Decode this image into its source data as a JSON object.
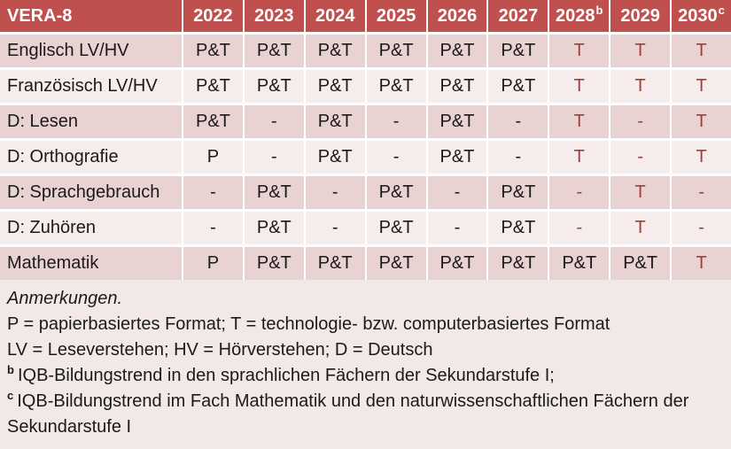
{
  "colors": {
    "header_bg": "#C0504D",
    "header_text": "#FFFFFF",
    "band_dark": "#E9D3D2",
    "band_light": "#F5ECEB",
    "notes_bg": "#F2E8E8",
    "highlight": "#9E3D3A",
    "body_text": "#1A1A1A"
  },
  "table": {
    "header": [
      {
        "label": "VERA-8",
        "sup": ""
      },
      {
        "label": "2022",
        "sup": ""
      },
      {
        "label": "2023",
        "sup": ""
      },
      {
        "label": "2024",
        "sup": ""
      },
      {
        "label": "2025",
        "sup": ""
      },
      {
        "label": "2026",
        "sup": ""
      },
      {
        "label": "2027",
        "sup": ""
      },
      {
        "label": "2028",
        "sup": "b"
      },
      {
        "label": "2029",
        "sup": ""
      },
      {
        "label": "2030",
        "sup": "c"
      }
    ],
    "rows": [
      {
        "label": "Englisch LV/HV",
        "cells": [
          {
            "v": "P&T",
            "hl": false
          },
          {
            "v": "P&T",
            "hl": false
          },
          {
            "v": "P&T",
            "hl": false
          },
          {
            "v": "P&T",
            "hl": false
          },
          {
            "v": "P&T",
            "hl": false
          },
          {
            "v": "P&T",
            "hl": false
          },
          {
            "v": "T",
            "hl": true
          },
          {
            "v": "T",
            "hl": true
          },
          {
            "v": "T",
            "hl": true
          }
        ]
      },
      {
        "label": "Französisch LV/HV",
        "cells": [
          {
            "v": "P&T",
            "hl": false
          },
          {
            "v": "P&T",
            "hl": false
          },
          {
            "v": "P&T",
            "hl": false
          },
          {
            "v": "P&T",
            "hl": false
          },
          {
            "v": "P&T",
            "hl": false
          },
          {
            "v": "P&T",
            "hl": false
          },
          {
            "v": "T",
            "hl": true
          },
          {
            "v": "T",
            "hl": true
          },
          {
            "v": "T",
            "hl": true
          }
        ]
      },
      {
        "label": "D: Lesen",
        "cells": [
          {
            "v": "P&T",
            "hl": false
          },
          {
            "v": "-",
            "hl": false
          },
          {
            "v": "P&T",
            "hl": false
          },
          {
            "v": "-",
            "hl": false
          },
          {
            "v": "P&T",
            "hl": false
          },
          {
            "v": "-",
            "hl": false
          },
          {
            "v": "T",
            "hl": true
          },
          {
            "v": "-",
            "hl": true
          },
          {
            "v": "T",
            "hl": true
          }
        ]
      },
      {
        "label": "D: Orthografie",
        "cells": [
          {
            "v": "P",
            "hl": false
          },
          {
            "v": "-",
            "hl": false
          },
          {
            "v": "P&T",
            "hl": false
          },
          {
            "v": "-",
            "hl": false
          },
          {
            "v": "P&T",
            "hl": false
          },
          {
            "v": "-",
            "hl": false
          },
          {
            "v": "T",
            "hl": true
          },
          {
            "v": "-",
            "hl": true
          },
          {
            "v": "T",
            "hl": true
          }
        ]
      },
      {
        "label": "D: Sprachgebrauch",
        "cells": [
          {
            "v": "-",
            "hl": false
          },
          {
            "v": "P&T",
            "hl": false
          },
          {
            "v": "-",
            "hl": false
          },
          {
            "v": "P&T",
            "hl": false
          },
          {
            "v": "-",
            "hl": false
          },
          {
            "v": "P&T",
            "hl": false
          },
          {
            "v": "-",
            "hl": true
          },
          {
            "v": "T",
            "hl": true
          },
          {
            "v": "-",
            "hl": true
          }
        ]
      },
      {
        "label": "D: Zuhören",
        "cells": [
          {
            "v": "-",
            "hl": false
          },
          {
            "v": "P&T",
            "hl": false
          },
          {
            "v": "-",
            "hl": false
          },
          {
            "v": "P&T",
            "hl": false
          },
          {
            "v": "-",
            "hl": false
          },
          {
            "v": "P&T",
            "hl": false
          },
          {
            "v": "-",
            "hl": true
          },
          {
            "v": "T",
            "hl": true
          },
          {
            "v": "-",
            "hl": true
          }
        ]
      },
      {
        "label": "Mathematik",
        "cells": [
          {
            "v": "P",
            "hl": false
          },
          {
            "v": "P&T",
            "hl": false
          },
          {
            "v": "P&T",
            "hl": false
          },
          {
            "v": "P&T",
            "hl": false
          },
          {
            "v": "P&T",
            "hl": false
          },
          {
            "v": "P&T",
            "hl": false
          },
          {
            "v": "P&T",
            "hl": false
          },
          {
            "v": "P&T",
            "hl": false
          },
          {
            "v": "T",
            "hl": true
          }
        ]
      }
    ]
  },
  "notes": {
    "lines": [
      {
        "sup": "",
        "text": "Anmerkungen.",
        "italic": true
      },
      {
        "sup": "",
        "text": "P = papierbasiertes Format; T = technologie- bzw. computerbasiertes Format",
        "italic": false
      },
      {
        "sup": "",
        "text": "LV = Leseverstehen; HV = Hörverstehen; D = Deutsch",
        "italic": false
      },
      {
        "sup": "b",
        "text": "IQB-Bildungstrend in den sprachlichen Fächern der Sekundarstufe I;",
        "italic": false
      },
      {
        "sup": "c",
        "text": "IQB-Bildungstrend im Fach Mathematik und den naturwissenschaftlichen Fächern der Sekundarstufe I",
        "italic": false
      }
    ]
  }
}
